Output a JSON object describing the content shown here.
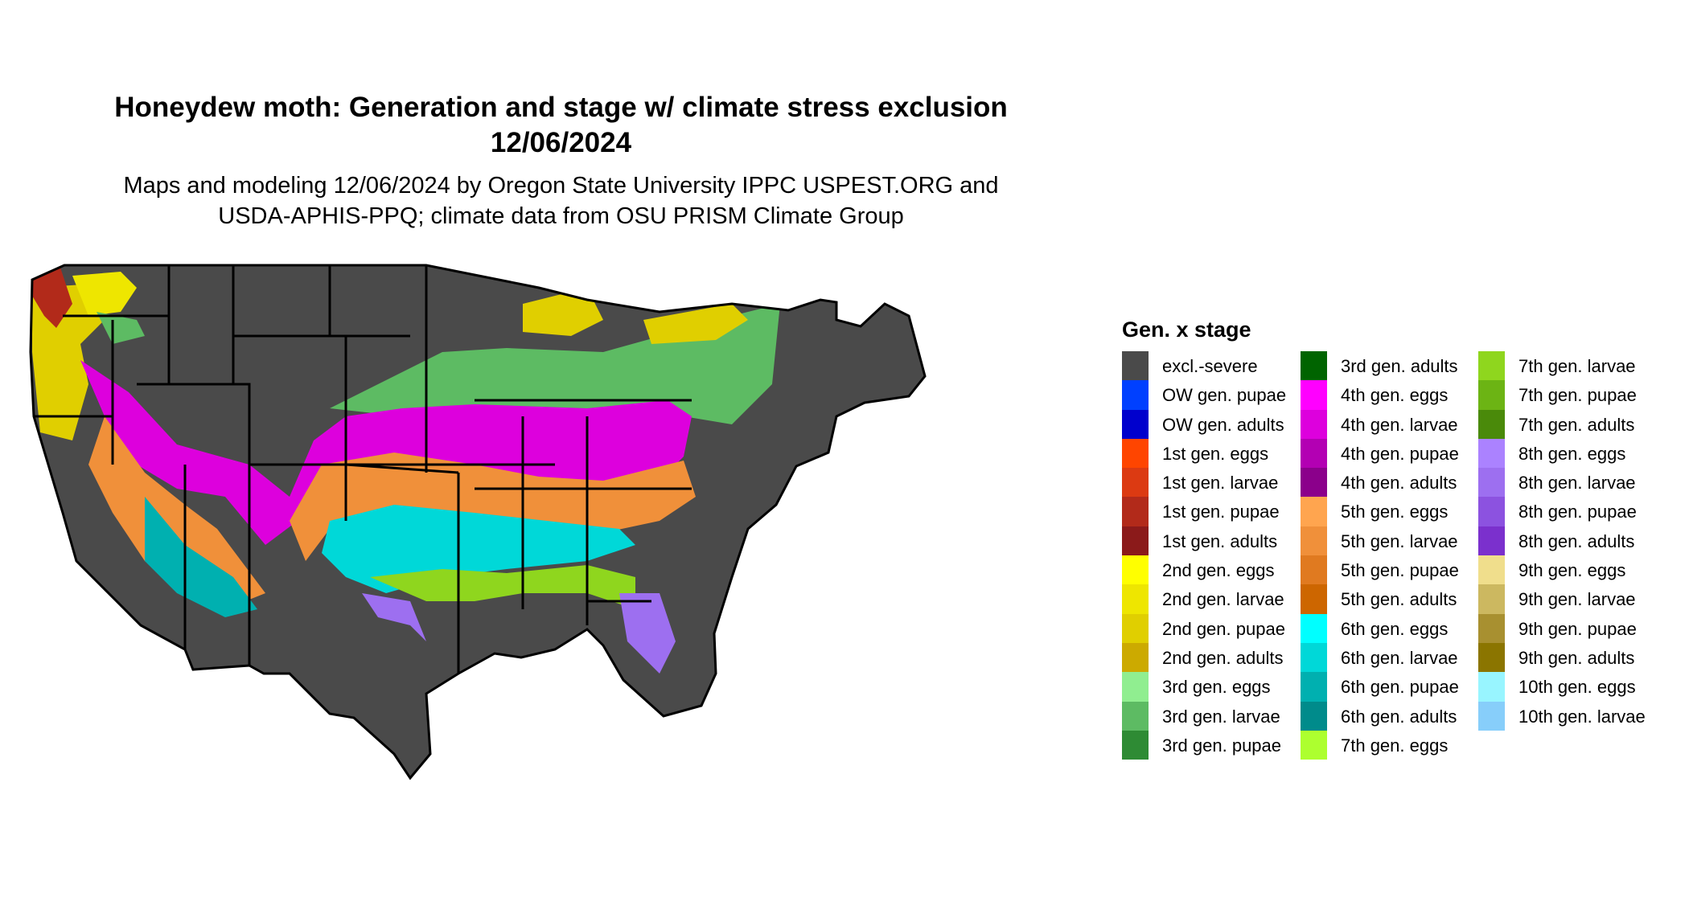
{
  "title": {
    "line1": "Honeydew moth: Generation and stage w/ climate stress exclusion",
    "line2": "12/06/2024"
  },
  "subtitle": {
    "line1": "Maps and modeling 12/06/2024 by Oregon State University IPPC USPEST.ORG and",
    "line2": "USDA-APHIS-PPQ; climate data from OSU PRISM Climate Group"
  },
  "legend": {
    "title": "Gen. x stage",
    "columns": [
      [
        {
          "label": "excl.-severe",
          "color": "#4a4a4a"
        },
        {
          "label": "OW gen. pupae",
          "color": "#0040ff"
        },
        {
          "label": "OW gen. adults",
          "color": "#0000cd"
        },
        {
          "label": "1st gen. eggs",
          "color": "#ff4500"
        },
        {
          "label": "1st gen. larvae",
          "color": "#dc3a12"
        },
        {
          "label": "1st gen. pupae",
          "color": "#b22a1a"
        },
        {
          "label": "1st gen. adults",
          "color": "#8b1a1a"
        },
        {
          "label": "2nd gen. eggs",
          "color": "#ffff00"
        },
        {
          "label": "2nd gen. larvae",
          "color": "#eee600"
        },
        {
          "label": "2nd gen. pupae",
          "color": "#e0cf00"
        },
        {
          "label": "2nd gen. adults",
          "color": "#ccaa00"
        },
        {
          "label": "3rd gen. eggs",
          "color": "#90ee90"
        },
        {
          "label": "3rd gen. larvae",
          "color": "#5dbb63"
        },
        {
          "label": "3rd gen. pupae",
          "color": "#2e8b34"
        }
      ],
      [
        {
          "label": "3rd gen. adults",
          "color": "#006400"
        },
        {
          "label": "4th gen. eggs",
          "color": "#ff00ff"
        },
        {
          "label": "4th gen. larvae",
          "color": "#dd00dd"
        },
        {
          "label": "4th gen. pupae",
          "color": "#b300b3"
        },
        {
          "label": "4th gen. adults",
          "color": "#8b008b"
        },
        {
          "label": "5th gen. eggs",
          "color": "#ffa54f"
        },
        {
          "label": "5th gen. larvae",
          "color": "#f0903a"
        },
        {
          "label": "5th gen. pupae",
          "color": "#e07a20"
        },
        {
          "label": "5th gen. adults",
          "color": "#cd6600"
        },
        {
          "label": "6th gen. eggs",
          "color": "#00ffff"
        },
        {
          "label": "6th gen. larvae",
          "color": "#00d8d8"
        },
        {
          "label": "6th gen. pupae",
          "color": "#00b0b0"
        },
        {
          "label": "6th gen. adults",
          "color": "#008b8b"
        },
        {
          "label": "7th gen. eggs",
          "color": "#adff2f"
        }
      ],
      [
        {
          "label": "7th gen. larvae",
          "color": "#8fd61e"
        },
        {
          "label": "7th gen. pupae",
          "color": "#6cb414"
        },
        {
          "label": "7th gen. adults",
          "color": "#4a8a0a"
        },
        {
          "label": "8th gen. eggs",
          "color": "#ab82ff"
        },
        {
          "label": "8th gen. larvae",
          "color": "#9d6ff0"
        },
        {
          "label": "8th gen. pupae",
          "color": "#8c52e0"
        },
        {
          "label": "8th gen. adults",
          "color": "#7b30cd"
        },
        {
          "label": "9th gen. eggs",
          "color": "#f0de8c"
        },
        {
          "label": "9th gen. larvae",
          "color": "#ccb860"
        },
        {
          "label": "9th gen. pupae",
          "color": "#a89030"
        },
        {
          "label": "9th gen. adults",
          "color": "#8b7500"
        },
        {
          "label": "10th gen. eggs",
          "color": "#98f5ff"
        },
        {
          "label": "10th gen. larvae",
          "color": "#87cefa"
        }
      ]
    ]
  }
}
